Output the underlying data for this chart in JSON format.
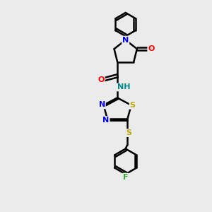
{
  "bg_color": "#ebebeb",
  "bond_color": "#000000",
  "atom_colors": {
    "N": "#0000ff",
    "O": "#ff0000",
    "S": "#bbaa00",
    "F": "#33aa33",
    "NH": "#008888",
    "C": "#000000"
  },
  "figsize": [
    3.0,
    3.0
  ],
  "dpi": 100,
  "xlim": [
    0,
    10
  ],
  "ylim": [
    0,
    13
  ]
}
